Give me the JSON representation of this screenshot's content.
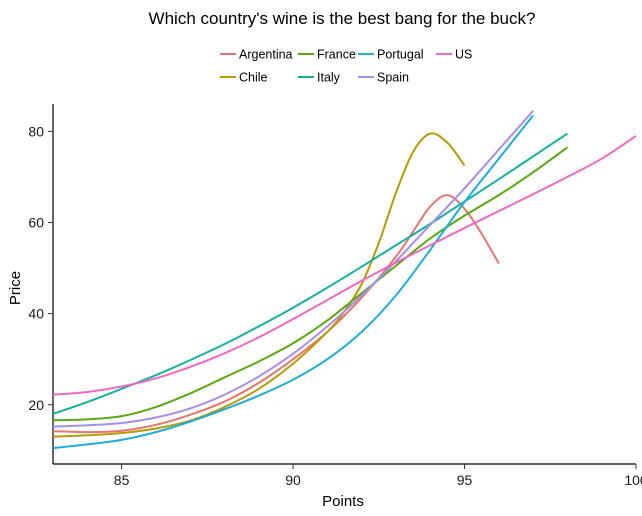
{
  "chart_data": {
    "type": "line",
    "title": "Which country's wine is the best bang for the buck?",
    "xlabel": "Points",
    "ylabel": "Price",
    "xlim": [
      83,
      100
    ],
    "ylim": [
      7,
      86
    ],
    "xticks": [
      85,
      90,
      95,
      100
    ],
    "yticks": [
      20,
      40,
      60,
      80
    ],
    "grid": false,
    "legend_position": "top",
    "series": [
      {
        "name": "Argentina",
        "color": "#E8766F",
        "points": [
          [
            83,
            14.2
          ],
          [
            84,
            14.0
          ],
          [
            85,
            14.3
          ],
          [
            86,
            15.6
          ],
          [
            87,
            17.8
          ],
          [
            88,
            20.7
          ],
          [
            89,
            24.8
          ],
          [
            90,
            30.0
          ],
          [
            91,
            36.0
          ],
          [
            92,
            43.5
          ],
          [
            93,
            52.5
          ],
          [
            93.5,
            58.0
          ],
          [
            94,
            63.5
          ],
          [
            94.5,
            66.0
          ],
          [
            95,
            63.0
          ],
          [
            95.5,
            57.5
          ],
          [
            96,
            51.0
          ]
        ]
      },
      {
        "name": "Chile",
        "color": "#B79B00",
        "points": [
          [
            83,
            13.0
          ],
          [
            84,
            13.3
          ],
          [
            85,
            13.8
          ],
          [
            86,
            14.8
          ],
          [
            87,
            16.5
          ],
          [
            88,
            19.5
          ],
          [
            89,
            23.5
          ],
          [
            90,
            29.0
          ],
          [
            91,
            36.0
          ],
          [
            91.5,
            40.5
          ],
          [
            92,
            46.5
          ],
          [
            92.5,
            55.5
          ],
          [
            93,
            66.5
          ],
          [
            93.5,
            75.5
          ],
          [
            94,
            79.5
          ],
          [
            94.5,
            77.5
          ],
          [
            95,
            72.5
          ]
        ]
      },
      {
        "name": "France",
        "color": "#59A90F",
        "points": [
          [
            83,
            16.6
          ],
          [
            84,
            16.8
          ],
          [
            85,
            17.5
          ],
          [
            86,
            19.5
          ],
          [
            87,
            22.5
          ],
          [
            88,
            26.0
          ],
          [
            89,
            29.5
          ],
          [
            90,
            33.5
          ],
          [
            91,
            38.5
          ],
          [
            92,
            44.5
          ],
          [
            93,
            50.5
          ],
          [
            94,
            56.5
          ],
          [
            95,
            61.5
          ],
          [
            96,
            66.0
          ],
          [
            97,
            71.0
          ],
          [
            98,
            76.5
          ]
        ]
      },
      {
        "name": "Italy",
        "color": "#13B1A0",
        "points": [
          [
            83,
            18.0
          ],
          [
            84,
            20.6
          ],
          [
            85,
            23.5
          ],
          [
            86,
            26.5
          ],
          [
            87,
            29.8
          ],
          [
            88,
            33.3
          ],
          [
            89,
            37.2
          ],
          [
            90,
            41.3
          ],
          [
            91,
            45.7
          ],
          [
            92,
            50.3
          ],
          [
            93,
            55.0
          ],
          [
            94,
            59.7
          ],
          [
            95,
            64.6
          ],
          [
            96,
            69.5
          ],
          [
            97,
            74.5
          ],
          [
            98,
            79.5
          ]
        ]
      },
      {
        "name": "Portugal",
        "color": "#1DAEDA",
        "points": [
          [
            83,
            10.5
          ],
          [
            84,
            11.3
          ],
          [
            85,
            12.3
          ],
          [
            86,
            14.0
          ],
          [
            87,
            16.3
          ],
          [
            88,
            19.0
          ],
          [
            89,
            22.0
          ],
          [
            90,
            25.5
          ],
          [
            91,
            30.0
          ],
          [
            92,
            36.0
          ],
          [
            93,
            44.0
          ],
          [
            94,
            54.0
          ],
          [
            95,
            64.5
          ],
          [
            96,
            74.0
          ],
          [
            97,
            83.5
          ]
        ]
      },
      {
        "name": "Spain",
        "color": "#A88EE6",
        "points": [
          [
            83,
            15.2
          ],
          [
            84,
            15.5
          ],
          [
            85,
            16.0
          ],
          [
            86,
            17.2
          ],
          [
            87,
            19.2
          ],
          [
            88,
            22.2
          ],
          [
            89,
            26.2
          ],
          [
            90,
            31.2
          ],
          [
            91,
            37.2
          ],
          [
            92,
            44.0
          ],
          [
            93,
            51.5
          ],
          [
            94,
            59.5
          ],
          [
            95,
            67.5
          ],
          [
            96,
            76.0
          ],
          [
            97,
            84.5
          ]
        ]
      },
      {
        "name": "US",
        "color": "#F068C9",
        "points": [
          [
            83,
            22.2
          ],
          [
            84,
            22.8
          ],
          [
            85,
            24.0
          ],
          [
            86,
            25.8
          ],
          [
            87,
            28.3
          ],
          [
            88,
            31.3
          ],
          [
            89,
            34.8
          ],
          [
            90,
            38.8
          ],
          [
            91,
            43.0
          ],
          [
            92,
            47.2
          ],
          [
            93,
            51.2
          ],
          [
            94,
            55.0
          ],
          [
            95,
            58.8
          ],
          [
            96,
            62.5
          ],
          [
            97,
            66.2
          ],
          [
            98,
            70.0
          ],
          [
            99,
            74.0
          ],
          [
            100,
            79.0
          ]
        ]
      }
    ]
  }
}
